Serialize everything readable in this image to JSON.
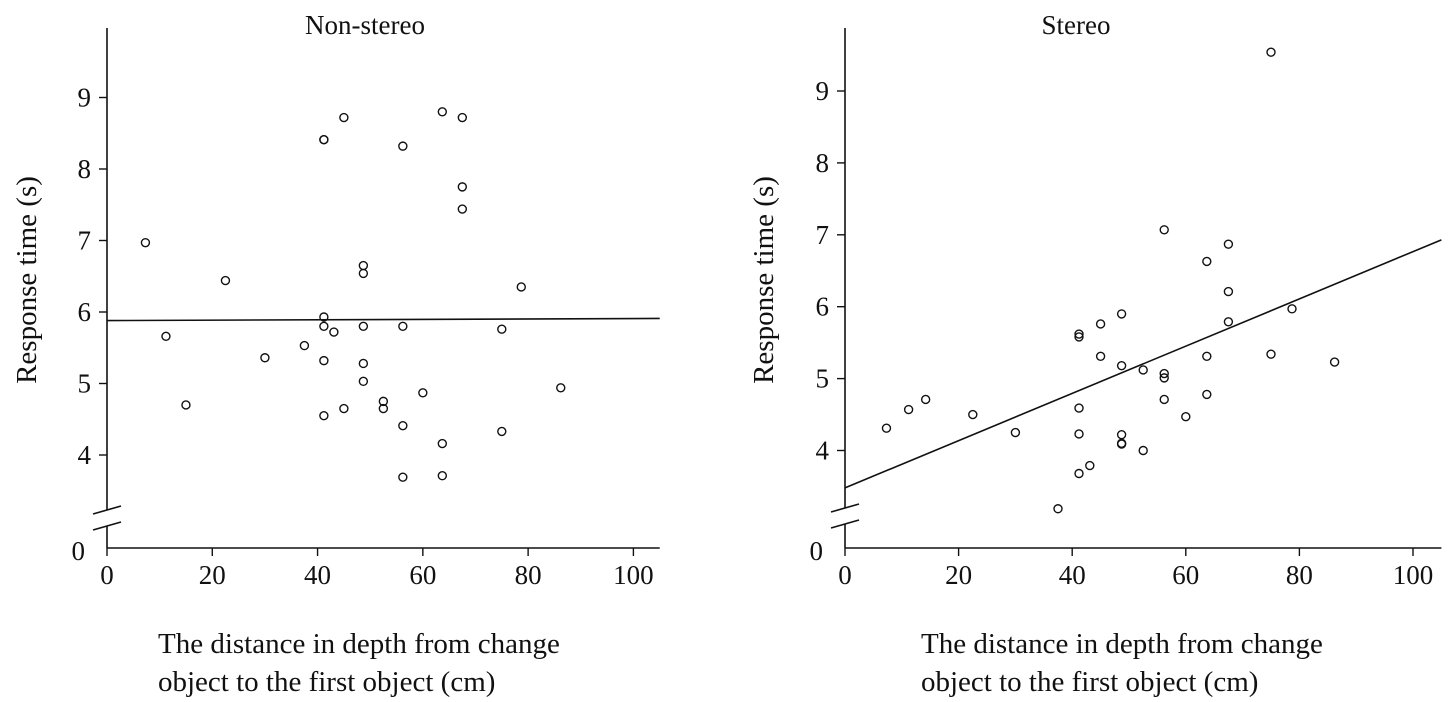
{
  "chart_data": [
    {
      "type": "scatter",
      "title": "Non-stereo",
      "xlabel": "The distance in depth from change object to the first object (cm)",
      "xlabel_lines": [
        "The distance in depth from change",
        "object to the first object (cm)"
      ],
      "ylabel": "Response time (s)",
      "xlim": [
        0,
        105
      ],
      "ylim": [
        0,
        9.8
      ],
      "y_axis_break": true,
      "x_ticks": [
        0,
        20,
        40,
        60,
        80,
        100
      ],
      "y_ticks": [
        0,
        4,
        5,
        6,
        7,
        8,
        9
      ],
      "grid": false,
      "marker": "open-circle",
      "color": "#111111",
      "trend_line": {
        "x": [
          0,
          105
        ],
        "y": [
          5.88,
          5.91
        ]
      },
      "x": [
        7.3,
        11.2,
        15.0,
        22.5,
        30.0,
        37.5,
        41.2,
        41.2,
        41.2,
        41.2,
        41.2,
        41.2,
        43.1,
        45.0,
        45.0,
        48.7,
        48.7,
        48.7,
        48.7,
        48.7,
        52.5,
        52.5,
        56.2,
        56.2,
        56.2,
        56.2,
        60.0,
        63.7,
        63.7,
        63.7,
        67.5,
        67.5,
        67.5,
        75.0,
        75.0,
        78.7,
        86.2
      ],
      "y": [
        6.97,
        5.66,
        4.7,
        6.44,
        5.36,
        5.53,
        8.41,
        5.93,
        5.8,
        5.32,
        4.55,
        8.41,
        5.72,
        8.72,
        4.65,
        6.65,
        6.54,
        5.8,
        5.28,
        5.03,
        4.75,
        4.65,
        8.32,
        5.8,
        4.41,
        3.69,
        4.87,
        8.8,
        4.16,
        3.71,
        8.72,
        7.75,
        7.44,
        5.76,
        4.33,
        6.35,
        4.94
      ]
    },
    {
      "type": "scatter",
      "title": "Stereo",
      "xlabel": "The distance in depth from change object to the first object (cm)",
      "xlabel_lines": [
        "The distance in depth from change",
        "object to the first object (cm)"
      ],
      "ylabel": "Response time (s)",
      "xlim": [
        0,
        105
      ],
      "ylim": [
        0,
        9.8
      ],
      "y_axis_break": true,
      "x_ticks": [
        0,
        20,
        40,
        60,
        80,
        100
      ],
      "y_ticks": [
        0,
        4,
        5,
        6,
        7,
        8,
        9
      ],
      "grid": false,
      "marker": "open-circle",
      "color": "#111111",
      "trend_line": {
        "x": [
          0,
          105
        ],
        "y": [
          3.48,
          6.93
        ]
      },
      "x": [
        7.3,
        11.2,
        14.2,
        22.5,
        30.0,
        37.5,
        41.2,
        41.2,
        41.2,
        41.2,
        41.2,
        43.1,
        45.0,
        45.0,
        48.7,
        48.7,
        48.7,
        48.7,
        48.7,
        52.5,
        52.5,
        56.2,
        56.2,
        56.2,
        56.2,
        60.0,
        63.7,
        63.7,
        63.7,
        67.5,
        67.5,
        67.5,
        75.0,
        75.0,
        78.7,
        86.2
      ],
      "y": [
        4.31,
        4.57,
        4.71,
        4.5,
        4.25,
        3.19,
        5.62,
        5.58,
        4.59,
        4.23,
        3.68,
        3.79,
        5.76,
        5.31,
        5.9,
        5.18,
        4.22,
        4.09,
        4.1,
        5.12,
        4.0,
        7.07,
        5.07,
        5.01,
        4.71,
        4.47,
        6.63,
        5.31,
        4.78,
        6.87,
        6.21,
        5.79,
        9.54,
        5.34,
        5.97,
        5.23
      ]
    }
  ]
}
